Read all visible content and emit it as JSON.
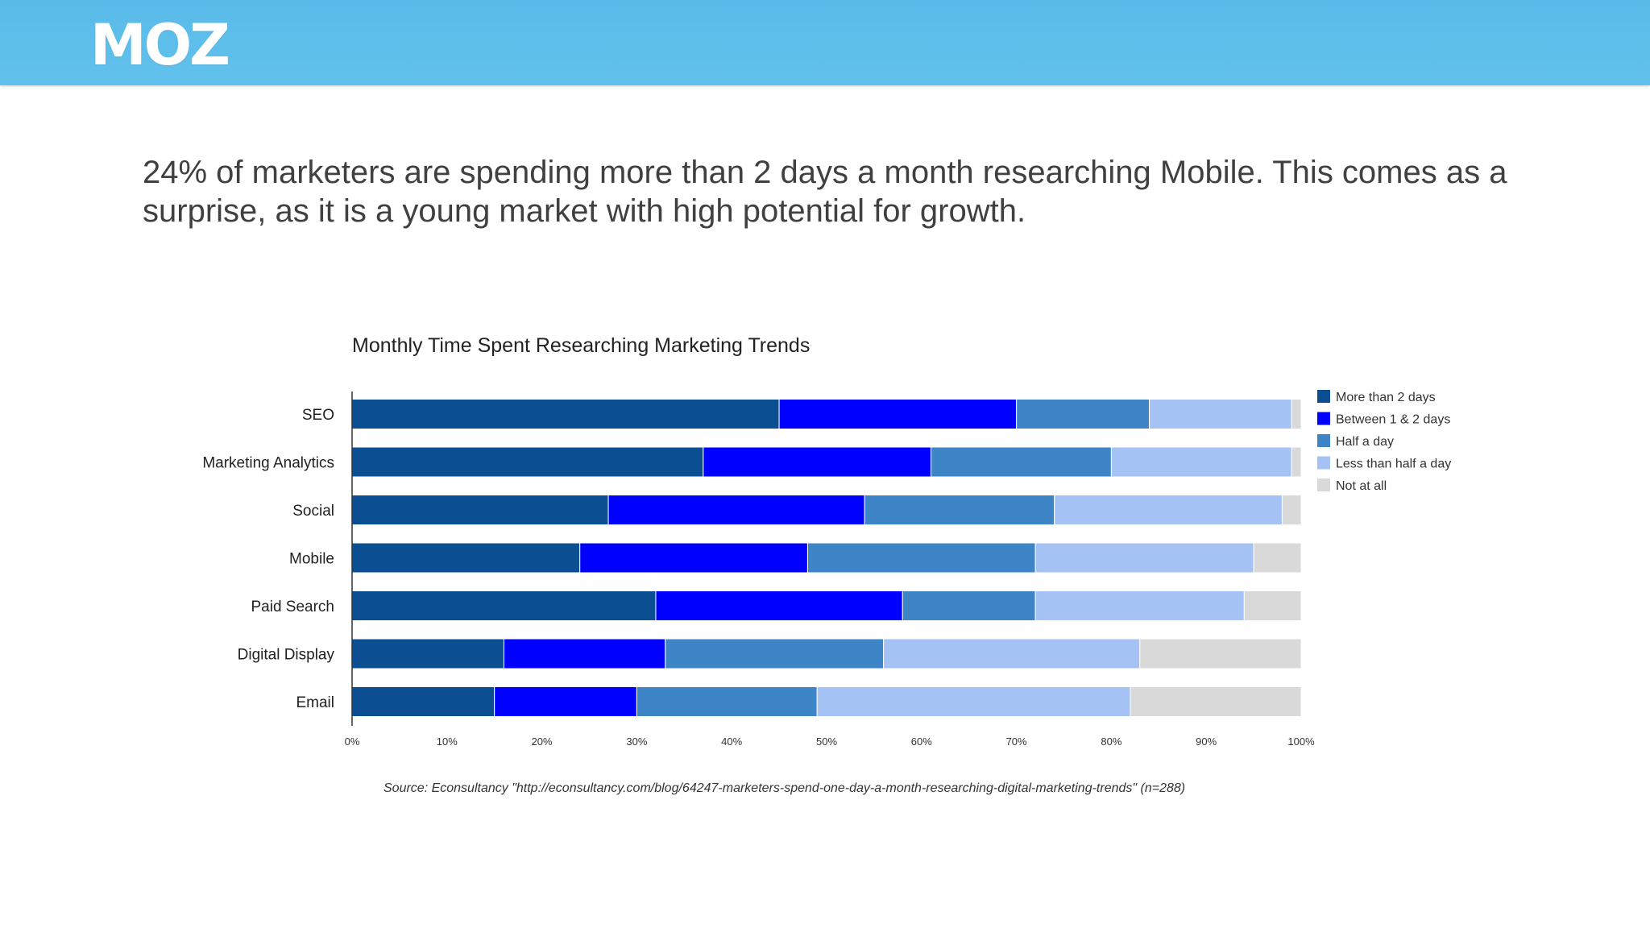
{
  "header": {
    "logo_text": "MOZ",
    "background_color": "#5bbde9"
  },
  "headline": "24% of marketers are spending more than 2 days a month researching Mobile. This comes as a surprise, as it is a young market with high potential for growth.",
  "chart_data": {
    "type": "bar",
    "orientation": "horizontal",
    "stacked": true,
    "title": "Monthly Time Spent Researching Marketing Trends",
    "xlabel": "",
    "ylabel": "",
    "xlim": [
      0,
      100
    ],
    "x_ticks": [
      "0%",
      "10%",
      "20%",
      "30%",
      "40%",
      "50%",
      "60%",
      "70%",
      "80%",
      "90%",
      "100%"
    ],
    "grid": false,
    "legend_position": "right",
    "categories": [
      "SEO",
      "Marketing Analytics",
      "Social",
      "Mobile",
      "Paid Search",
      "Digital Display",
      "Email"
    ],
    "series": [
      {
        "name": "More than 2 days",
        "color": "#0b4f92",
        "values": [
          45,
          37,
          27,
          24,
          32,
          16,
          15
        ]
      },
      {
        "name": "Between 1 & 2 days",
        "color": "#0000ff",
        "values": [
          25,
          24,
          27,
          24,
          26,
          17,
          15
        ]
      },
      {
        "name": "Half a day",
        "color": "#3d85c6",
        "values": [
          14,
          19,
          20,
          24,
          14,
          23,
          19
        ]
      },
      {
        "name": "Less than half a day",
        "color": "#a4c2f4",
        "values": [
          15,
          19,
          24,
          23,
          22,
          27,
          33
        ]
      },
      {
        "name": "Not at all",
        "color": "#d9d9d9",
        "values": [
          1,
          1,
          2,
          5,
          6,
          17,
          18
        ]
      }
    ]
  },
  "source": "Source: Econsultancy \"http://econsultancy.com/blog/64247-marketers-spend-one-day-a-month-researching-digital-marketing-trends\" (n=288)"
}
